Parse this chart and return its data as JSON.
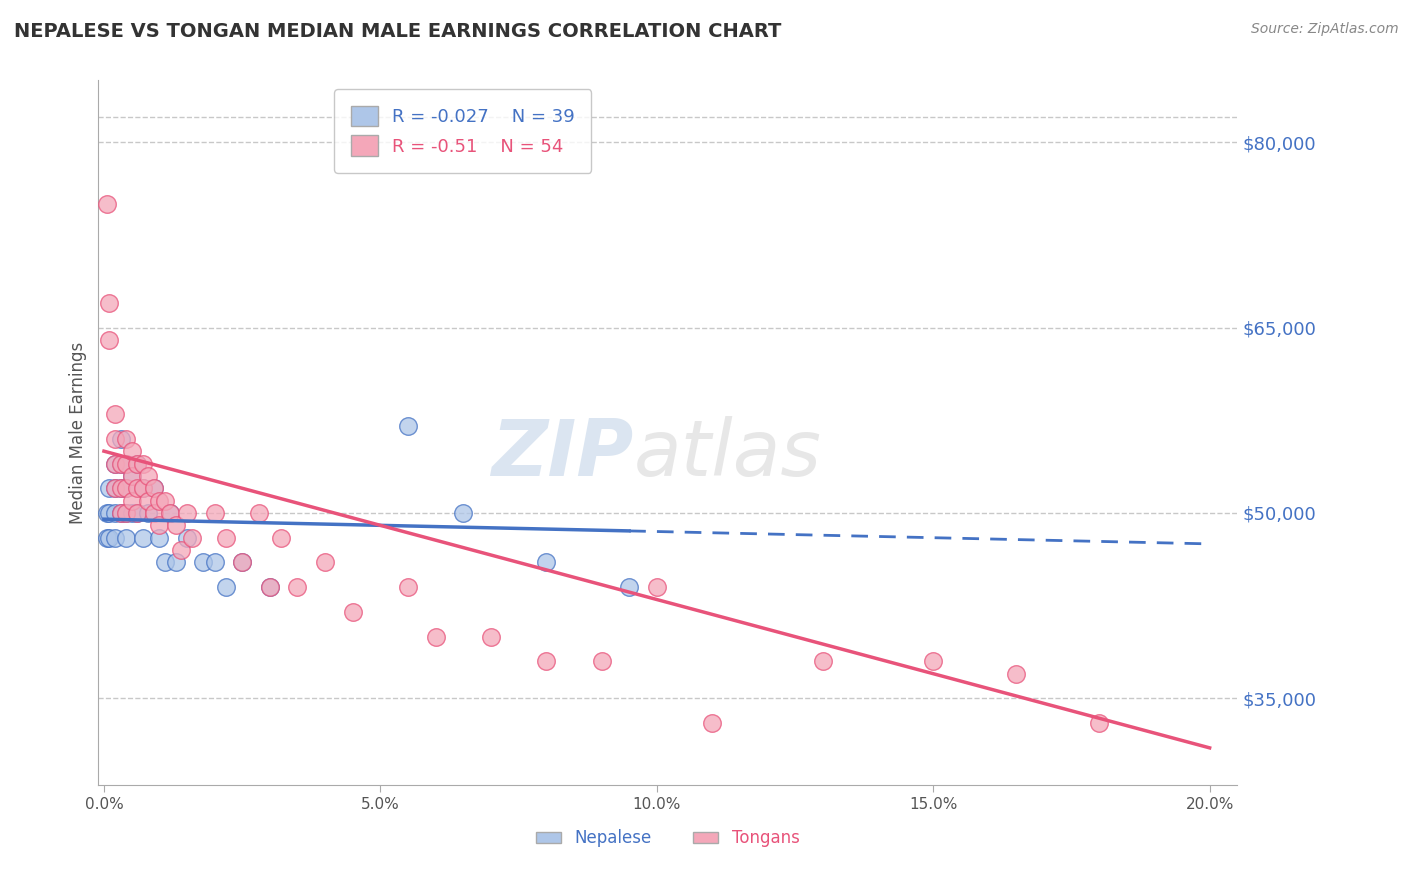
{
  "title": "NEPALESE VS TONGAN MEDIAN MALE EARNINGS CORRELATION CHART",
  "source": "Source: ZipAtlas.com",
  "ylabel": "Median Male Earnings",
  "xlim": [
    -0.001,
    0.205
  ],
  "ylim": [
    28000,
    85000
  ],
  "yticks": [
    35000,
    50000,
    65000,
    80000
  ],
  "ytick_labels": [
    "$35,000",
    "$50,000",
    "$65,000",
    "$80,000"
  ],
  "xticks": [
    0.0,
    0.05,
    0.1,
    0.15,
    0.2
  ],
  "xtick_labels": [
    "0.0%",
    "5.0%",
    "10.0%",
    "15.0%",
    "20.0%"
  ],
  "background_color": "#ffffff",
  "grid_color": "#c8c8c8",
  "nepalese_color": "#aec6e8",
  "tongan_color": "#f4a7b9",
  "nepalese_line_color": "#4472c4",
  "tongan_line_color": "#e8537a",
  "R_nepalese": -0.027,
  "N_nepalese": 39,
  "R_tongan": -0.51,
  "N_tongan": 54,
  "nepalese_x": [
    0.0005,
    0.0005,
    0.001,
    0.001,
    0.001,
    0.002,
    0.002,
    0.002,
    0.002,
    0.003,
    0.003,
    0.003,
    0.003,
    0.004,
    0.004,
    0.004,
    0.004,
    0.005,
    0.005,
    0.006,
    0.006,
    0.007,
    0.007,
    0.008,
    0.009,
    0.01,
    0.011,
    0.012,
    0.013,
    0.015,
    0.018,
    0.02,
    0.022,
    0.025,
    0.03,
    0.055,
    0.065,
    0.08,
    0.095
  ],
  "nepalese_y": [
    50000,
    48000,
    52000,
    50000,
    48000,
    54000,
    52000,
    50000,
    48000,
    56000,
    54000,
    52000,
    50000,
    54000,
    52000,
    50000,
    48000,
    53000,
    50000,
    54000,
    50000,
    52000,
    48000,
    50000,
    52000,
    48000,
    46000,
    50000,
    46000,
    48000,
    46000,
    46000,
    44000,
    46000,
    44000,
    57000,
    50000,
    46000,
    44000
  ],
  "tongan_x": [
    0.0005,
    0.001,
    0.001,
    0.002,
    0.002,
    0.002,
    0.002,
    0.003,
    0.003,
    0.003,
    0.004,
    0.004,
    0.004,
    0.004,
    0.005,
    0.005,
    0.005,
    0.006,
    0.006,
    0.006,
    0.007,
    0.007,
    0.008,
    0.008,
    0.009,
    0.009,
    0.01,
    0.01,
    0.011,
    0.012,
    0.013,
    0.014,
    0.015,
    0.016,
    0.02,
    0.022,
    0.025,
    0.028,
    0.03,
    0.032,
    0.035,
    0.04,
    0.045,
    0.055,
    0.06,
    0.07,
    0.08,
    0.09,
    0.1,
    0.11,
    0.13,
    0.15,
    0.165,
    0.18
  ],
  "tongan_y": [
    75000,
    67000,
    64000,
    58000,
    56000,
    54000,
    52000,
    54000,
    52000,
    50000,
    56000,
    54000,
    52000,
    50000,
    55000,
    53000,
    51000,
    54000,
    52000,
    50000,
    54000,
    52000,
    53000,
    51000,
    52000,
    50000,
    51000,
    49000,
    51000,
    50000,
    49000,
    47000,
    50000,
    48000,
    50000,
    48000,
    46000,
    50000,
    44000,
    48000,
    44000,
    46000,
    42000,
    44000,
    40000,
    40000,
    38000,
    38000,
    44000,
    33000,
    38000,
    38000,
    37000,
    33000
  ],
  "nepalese_line_y_at_0": 49500,
  "nepalese_line_y_at_020": 47500,
  "tongan_line_y_at_0": 55000,
  "tongan_line_y_at_020": 31000
}
